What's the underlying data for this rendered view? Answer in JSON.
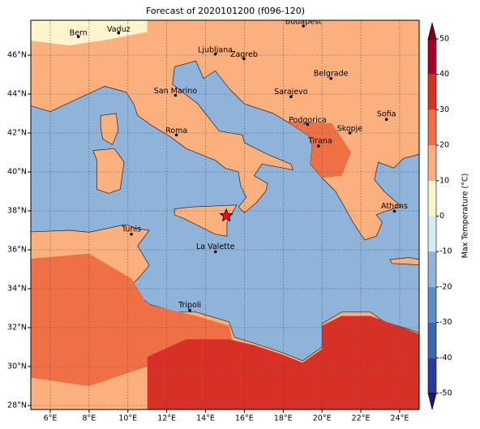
{
  "title": "Forecast of 2020101200 (f096-120)",
  "map": {
    "lon_labels": [
      "6°E",
      "8°E",
      "10°E",
      "12°E",
      "14°E",
      "16°E",
      "18°E",
      "20°E",
      "22°E",
      "24°E"
    ],
    "lat_labels": [
      "28°N",
      "30°N",
      "32°N",
      "34°N",
      "36°N",
      "38°N",
      "40°N",
      "42°N",
      "44°N",
      "46°N"
    ],
    "cities": [
      "Bern",
      "Vaduz",
      "Budapest",
      "Ljubljana",
      "Zagreb",
      "Belgrade",
      "San Marino",
      "Sarajevo",
      "Sofia",
      "Podgorica",
      "Skopje",
      "Roma",
      "Tirana",
      "Athens",
      "Tunis",
      "La Valette",
      "Tripoli"
    ]
  },
  "colorbar": {
    "label": "Max Temperature (°C)",
    "ticks": [
      -50,
      -40,
      -30,
      -20,
      -10,
      0,
      10,
      20,
      30,
      40,
      50
    ],
    "colors": [
      "#2b3a9a",
      "#3b66b0",
      "#5b8fc2",
      "#8fb3d9",
      "#d6ecf5",
      "#fff5cc",
      "#fcb07e",
      "#f07045",
      "#d73027",
      "#a50026"
    ],
    "under_color": "#1a1a6e",
    "over_color": "#7a0020"
  }
}
